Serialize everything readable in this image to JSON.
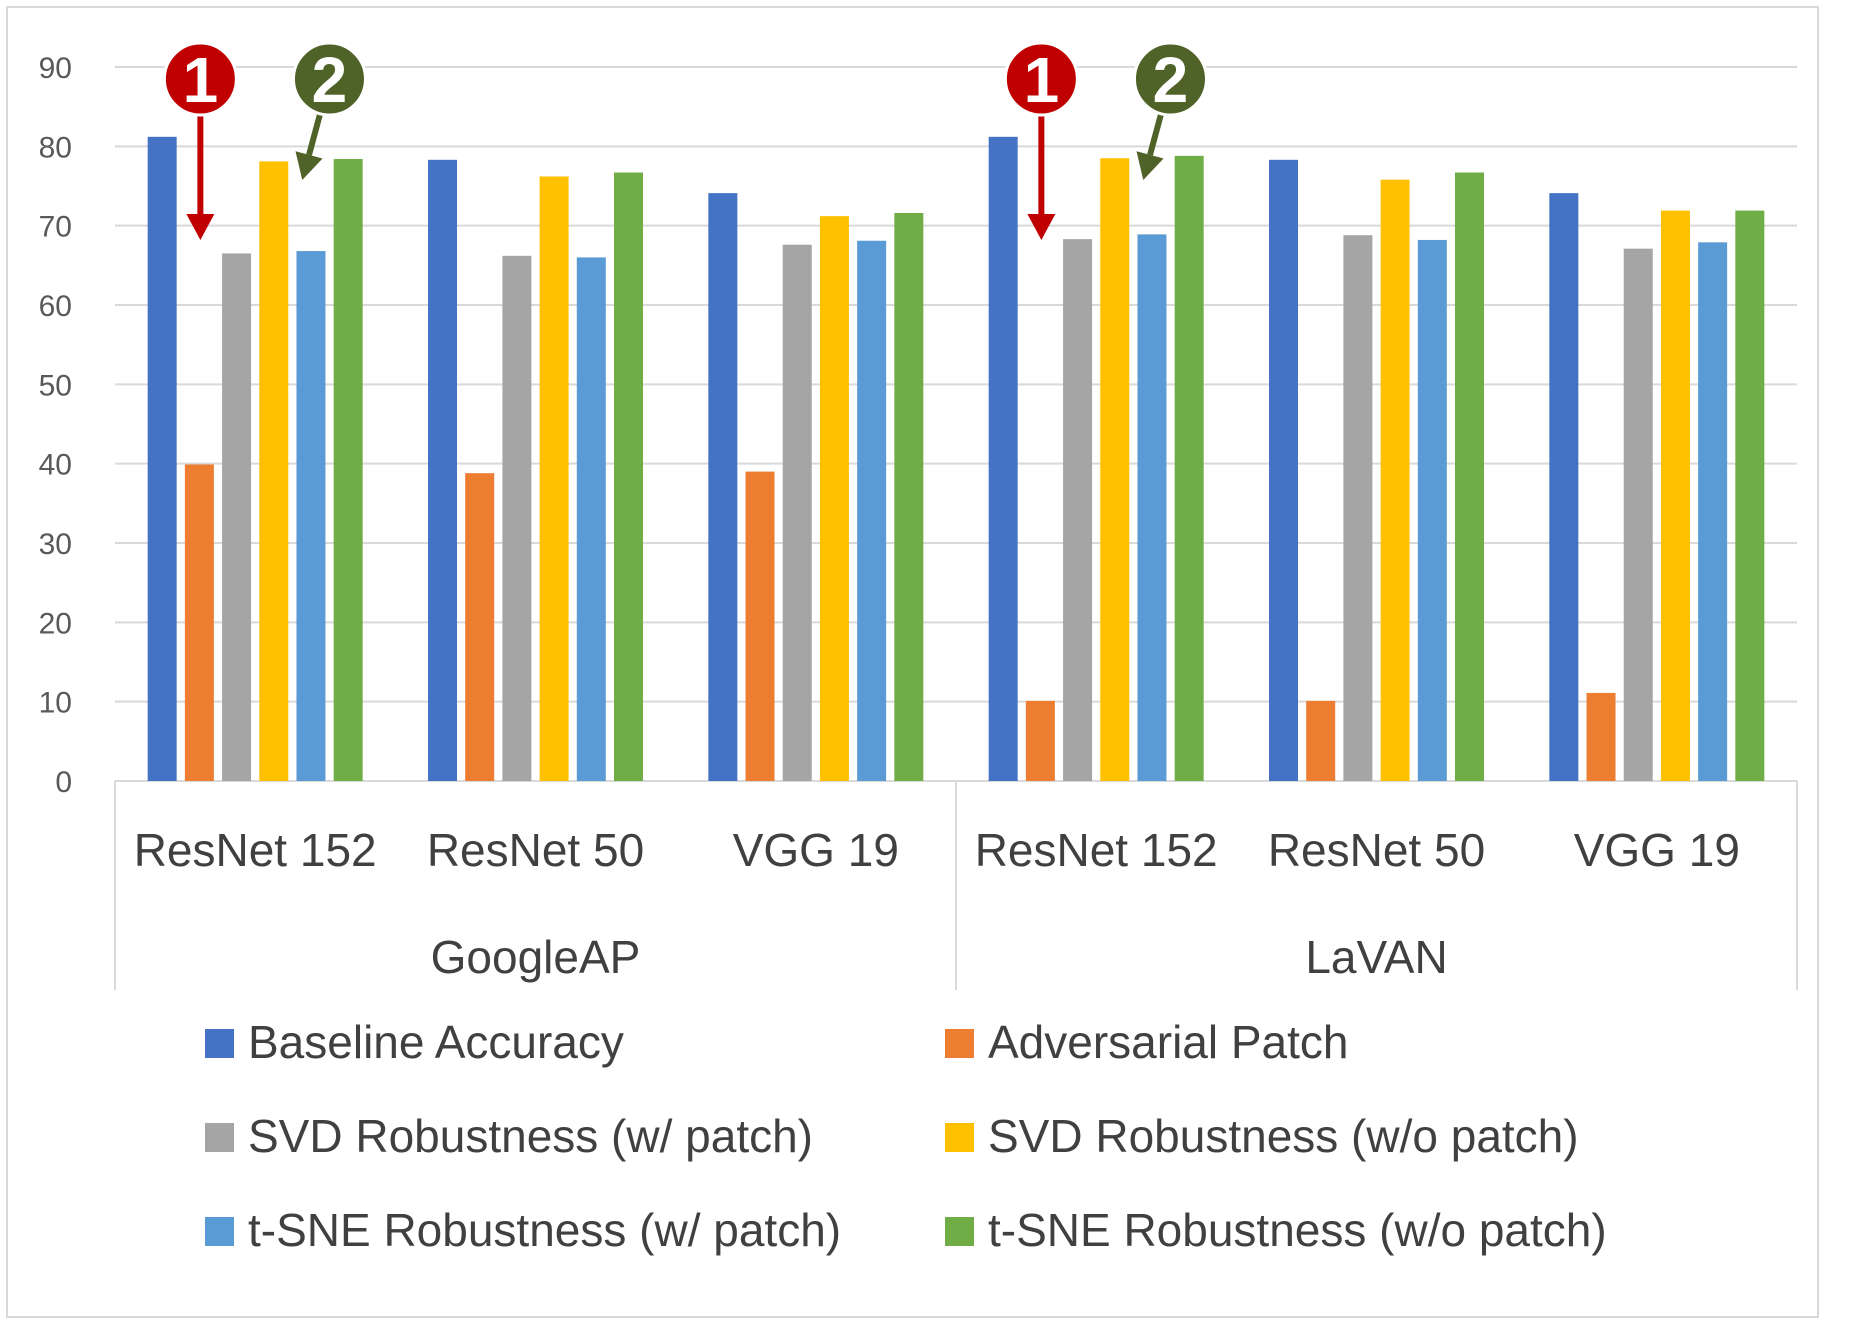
{
  "chart_data": {
    "type": "bar",
    "title": "",
    "xlabel": "",
    "ylabel": "",
    "ylim": [
      0,
      90
    ],
    "yticks": [
      0,
      10,
      20,
      30,
      40,
      50,
      60,
      70,
      80,
      90
    ],
    "grid": true,
    "legend_position": "bottom",
    "groups": [
      {
        "label": "GoogleAP",
        "categories": [
          "ResNet 152",
          "ResNet 50",
          "VGG 19"
        ]
      },
      {
        "label": "LaVAN",
        "categories": [
          "ResNet 152",
          "ResNet 50",
          "VGG 19"
        ]
      }
    ],
    "categories": [
      "ResNet 152",
      "ResNet 50",
      "VGG 19",
      "ResNet 152",
      "ResNet 50",
      "VGG 19"
    ],
    "series": [
      {
        "name": "Baseline Accuracy",
        "color": "#4472c4",
        "values": [
          81.2,
          78.3,
          74.1,
          81.2,
          78.3,
          74.1
        ]
      },
      {
        "name": "Adversarial Patch",
        "color": "#ed7d31",
        "values": [
          39.9,
          38.8,
          39.0,
          10.1,
          10.1,
          11.1
        ]
      },
      {
        "name": "SVD Robustness (w/ patch)",
        "color": "#a5a5a5",
        "values": [
          66.5,
          66.2,
          67.6,
          68.3,
          68.8,
          67.1
        ]
      },
      {
        "name": "SVD Robustness (w/o patch)",
        "color": "#ffc000",
        "values": [
          78.1,
          76.2,
          71.2,
          78.5,
          75.8,
          71.9
        ]
      },
      {
        "name": "t-SNE Robustness (w/ patch)",
        "color": "#5b9bd5",
        "values": [
          66.8,
          66.0,
          68.1,
          68.9,
          68.2,
          67.9
        ]
      },
      {
        "name": "t-SNE Robustness (w/o patch)",
        "color": "#70ad47",
        "values": [
          78.4,
          76.7,
          71.6,
          78.8,
          76.7,
          71.9
        ]
      }
    ],
    "annotations": [
      {
        "label": "1",
        "color": "#c00000",
        "group": 0,
        "points_to": "SVD Robustness (w/ patch)"
      },
      {
        "label": "2",
        "color": "#4f6228",
        "group": 0,
        "points_to": "t-SNE Robustness (w/ patch)"
      },
      {
        "label": "1",
        "color": "#c00000",
        "group": 1,
        "points_to": "SVD Robustness (w/ patch)"
      },
      {
        "label": "2",
        "color": "#4f6228",
        "group": 1,
        "points_to": "t-SNE Robustness (w/ patch)"
      }
    ]
  }
}
